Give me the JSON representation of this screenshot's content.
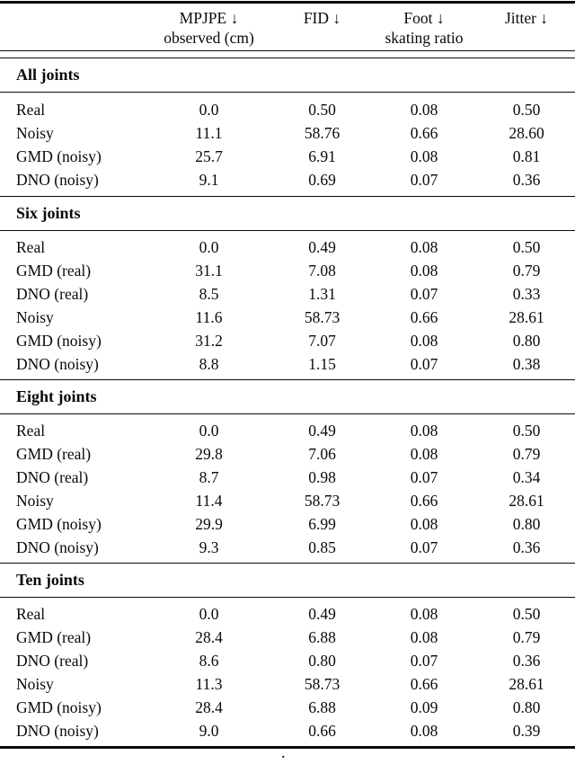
{
  "page": {
    "background": "#ffffff",
    "text_color": "#0a0a0a"
  },
  "table": {
    "header": {
      "col1_line1": "MPJPE ↓",
      "col1_line2": "observed (cm)",
      "col2_line1": "FID ↓",
      "col3_line1": "Foot ↓",
      "col3_line2": "skating ratio",
      "col4_line1": "Jitter ↓"
    },
    "sections": [
      {
        "title": "All joints",
        "rows": [
          {
            "label": "Real",
            "values": [
              "0.0",
              "0.50",
              "0.08",
              "0.50"
            ]
          },
          {
            "label": "Noisy",
            "values": [
              "11.1",
              "58.76",
              "0.66",
              "28.60"
            ]
          },
          {
            "label": "GMD (noisy)",
            "values": [
              "25.7",
              "6.91",
              "0.08",
              "0.81"
            ]
          },
          {
            "label": "DNO (noisy)",
            "values": [
              "9.1",
              "0.69",
              "0.07",
              "0.36"
            ]
          }
        ]
      },
      {
        "title": "Six joints",
        "rows": [
          {
            "label": "Real",
            "values": [
              "0.0",
              "0.49",
              "0.08",
              "0.50"
            ]
          },
          {
            "label": "GMD (real)",
            "values": [
              "31.1",
              "7.08",
              "0.08",
              "0.79"
            ]
          },
          {
            "label": "DNO (real)",
            "values": [
              "8.5",
              "1.31",
              "0.07",
              "0.33"
            ]
          },
          {
            "label": "Noisy",
            "values": [
              "11.6",
              "58.73",
              "0.66",
              "28.61"
            ]
          },
          {
            "label": "GMD (noisy)",
            "values": [
              "31.2",
              "7.07",
              "0.08",
              "0.80"
            ]
          },
          {
            "label": "DNO (noisy)",
            "values": [
              "8.8",
              "1.15",
              "0.07",
              "0.38"
            ]
          }
        ]
      },
      {
        "title": "Eight joints",
        "rows": [
          {
            "label": "Real",
            "values": [
              "0.0",
              "0.49",
              "0.08",
              "0.50"
            ]
          },
          {
            "label": "GMD (real)",
            "values": [
              "29.8",
              "7.06",
              "0.08",
              "0.79"
            ]
          },
          {
            "label": "DNO (real)",
            "values": [
              "8.7",
              "0.98",
              "0.07",
              "0.34"
            ]
          },
          {
            "label": "Noisy",
            "values": [
              "11.4",
              "58.73",
              "0.66",
              "28.61"
            ]
          },
          {
            "label": "GMD (noisy)",
            "values": [
              "29.9",
              "6.99",
              "0.08",
              "0.80"
            ]
          },
          {
            "label": "DNO (noisy)",
            "values": [
              "9.3",
              "0.85",
              "0.07",
              "0.36"
            ]
          }
        ]
      },
      {
        "title": "Ten joints",
        "rows": [
          {
            "label": "Real",
            "values": [
              "0.0",
              "0.49",
              "0.08",
              "0.50"
            ]
          },
          {
            "label": "GMD (real)",
            "values": [
              "28.4",
              "6.88",
              "0.08",
              "0.79"
            ]
          },
          {
            "label": "DNO (real)",
            "values": [
              "8.6",
              "0.80",
              "0.07",
              "0.36"
            ]
          },
          {
            "label": "Noisy",
            "values": [
              "11.3",
              "58.73",
              "0.66",
              "28.61"
            ]
          },
          {
            "label": "GMD (noisy)",
            "values": [
              "28.4",
              "6.88",
              "0.09",
              "0.80"
            ]
          },
          {
            "label": "DNO (noisy)",
            "values": [
              "9.0",
              "0.66",
              "0.08",
              "0.39"
            ]
          }
        ]
      }
    ]
  },
  "footer": {
    "stray_dot": "."
  }
}
